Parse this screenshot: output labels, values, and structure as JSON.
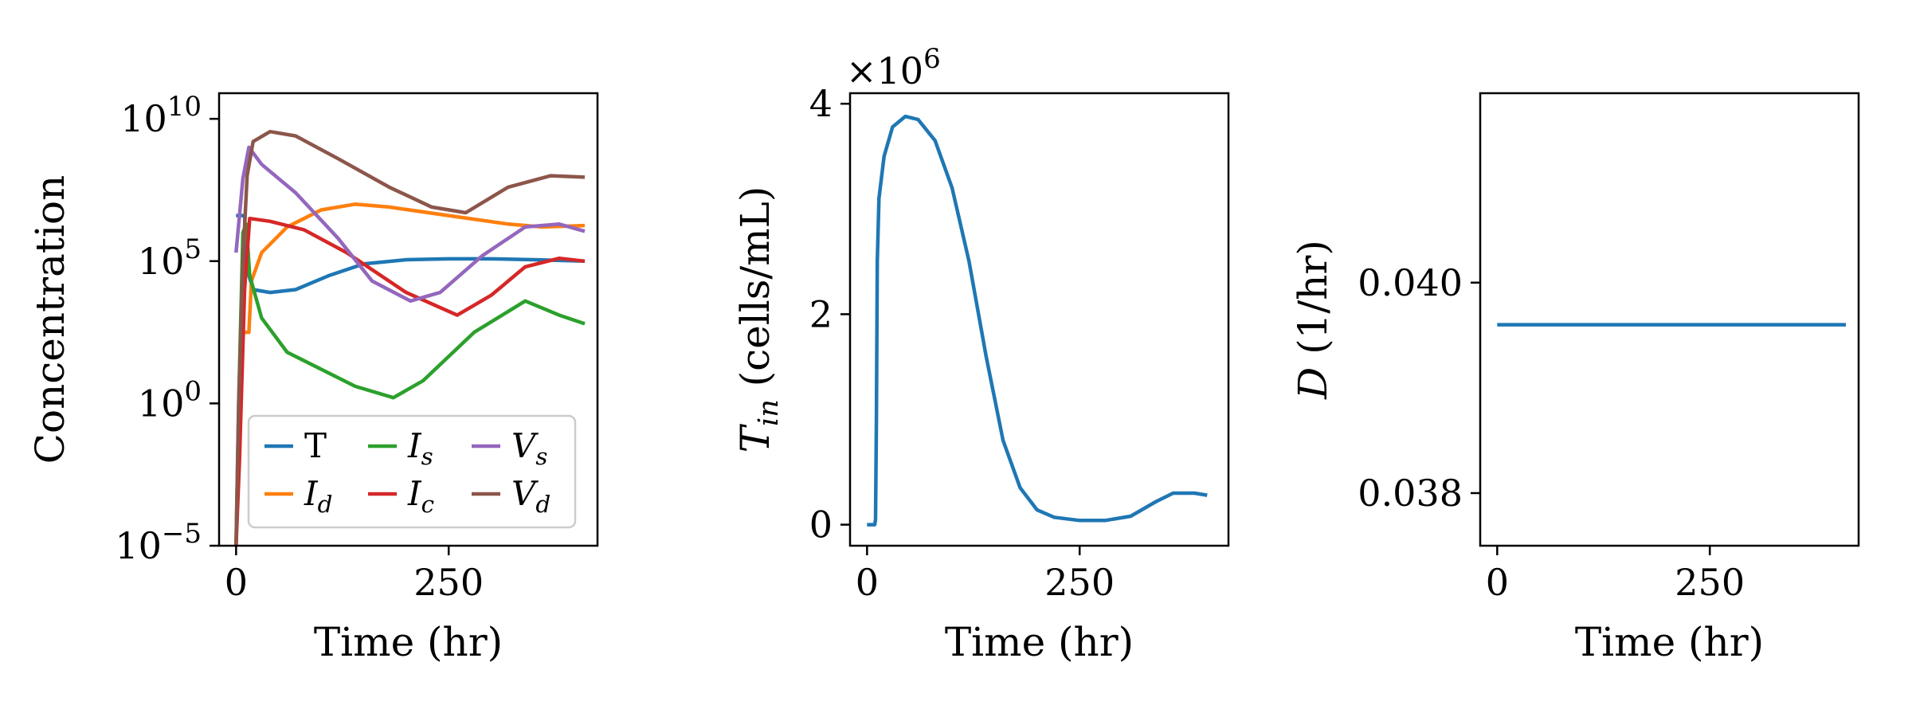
{
  "chart_data": [
    {
      "type": "line",
      "xlabel": "Time (hr)",
      "ylabel": "Concentration",
      "y_scale": "log",
      "xlim": [
        -20,
        425
      ],
      "ylim_log10": [
        -5,
        10.9
      ],
      "xticks": [
        0,
        250
      ],
      "yticks": [
        {
          "exp": 10,
          "label": "10",
          "sup": "10"
        },
        {
          "exp": 5,
          "label": "10",
          "sup": "5"
        },
        {
          "exp": 0,
          "label": "10",
          "sup": "0"
        },
        {
          "exp": -5,
          "label": "10",
          "sup": "−5"
        }
      ],
      "legend": {
        "placement": "lower-right",
        "columns": 3
      },
      "series": [
        {
          "name": "T",
          "color": "#1f77b4",
          "points": [
            [
              0,
              6.6
            ],
            [
              10,
              6.6
            ],
            [
              12,
              4.8
            ],
            [
              20,
              4.0
            ],
            [
              40,
              3.9
            ],
            [
              70,
              4.0
            ],
            [
              110,
              4.5
            ],
            [
              150,
              4.9
            ],
            [
              200,
              5.05
            ],
            [
              250,
              5.08
            ],
            [
              300,
              5.08
            ],
            [
              350,
              5.05
            ],
            [
              410,
              5.0
            ]
          ]
        },
        {
          "name": "I_d",
          "color": "#ff7f0e",
          "points": [
            [
              0,
              -5
            ],
            [
              4,
              -1
            ],
            [
              8,
              2.5
            ],
            [
              15,
              2.5
            ],
            [
              18,
              4.3
            ],
            [
              30,
              5.3
            ],
            [
              60,
              6.2
            ],
            [
              100,
              6.8
            ],
            [
              140,
              7.0
            ],
            [
              180,
              6.9
            ],
            [
              250,
              6.6
            ],
            [
              320,
              6.3
            ],
            [
              360,
              6.2
            ],
            [
              410,
              6.25
            ]
          ]
        },
        {
          "name": "I_s",
          "color": "#2ca02c",
          "points": [
            [
              0,
              -5
            ],
            [
              3,
              0
            ],
            [
              8,
              6
            ],
            [
              12,
              6.3
            ],
            [
              16,
              4.5
            ],
            [
              30,
              3.0
            ],
            [
              60,
              1.8
            ],
            [
              100,
              1.2
            ],
            [
              140,
              0.6
            ],
            [
              185,
              0.2
            ],
            [
              220,
              0.8
            ],
            [
              280,
              2.5
            ],
            [
              340,
              3.6
            ],
            [
              380,
              3.1
            ],
            [
              410,
              2.8
            ]
          ]
        },
        {
          "name": "I_c",
          "color": "#d62728",
          "points": [
            [
              0,
              -5
            ],
            [
              4,
              -2
            ],
            [
              10,
              4
            ],
            [
              16,
              6.5
            ],
            [
              40,
              6.4
            ],
            [
              80,
              6.1
            ],
            [
              130,
              5.3
            ],
            [
              200,
              3.9
            ],
            [
              260,
              3.1
            ],
            [
              300,
              3.8
            ],
            [
              340,
              4.8
            ],
            [
              380,
              5.1
            ],
            [
              410,
              5.0
            ]
          ]
        },
        {
          "name": "V_s",
          "color": "#9467bd",
          "points": [
            [
              0,
              5.3
            ],
            [
              8,
              7.9
            ],
            [
              15,
              9.0
            ],
            [
              30,
              8.4
            ],
            [
              70,
              7.4
            ],
            [
              120,
              5.8
            ],
            [
              160,
              4.3
            ],
            [
              205,
              3.6
            ],
            [
              240,
              3.9
            ],
            [
              290,
              5.2
            ],
            [
              340,
              6.2
            ],
            [
              380,
              6.3
            ],
            [
              410,
              6.05
            ]
          ]
        },
        {
          "name": "V_d",
          "color": "#8c564b",
          "points": [
            [
              0,
              -5
            ],
            [
              3,
              0
            ],
            [
              8,
              5
            ],
            [
              13,
              8
            ],
            [
              20,
              9.2
            ],
            [
              40,
              9.55
            ],
            [
              70,
              9.4
            ],
            [
              120,
              8.6
            ],
            [
              180,
              7.6
            ],
            [
              230,
              6.9
            ],
            [
              270,
              6.7
            ],
            [
              320,
              7.6
            ],
            [
              370,
              8.0
            ],
            [
              410,
              7.95
            ]
          ]
        }
      ]
    },
    {
      "type": "line",
      "xlabel": "Time (hr)",
      "ylabel": "T_in (cells/mL)",
      "offset_label": "×10^6",
      "xlim": [
        -20,
        425
      ],
      "ylim": [
        -0.2,
        4.1
      ],
      "xticks": [
        0,
        250
      ],
      "yticks": [
        0,
        2,
        4
      ],
      "series": [
        {
          "name": "T_in",
          "color": "#1f77b4",
          "points": [
            [
              0,
              0
            ],
            [
              9,
              0
            ],
            [
              10,
              0.05
            ],
            [
              11,
              1.0
            ],
            [
              12,
              2.5
            ],
            [
              14,
              3.1
            ],
            [
              20,
              3.5
            ],
            [
              30,
              3.78
            ],
            [
              45,
              3.88
            ],
            [
              60,
              3.85
            ],
            [
              80,
              3.65
            ],
            [
              100,
              3.2
            ],
            [
              120,
              2.5
            ],
            [
              140,
              1.6
            ],
            [
              160,
              0.8
            ],
            [
              180,
              0.35
            ],
            [
              200,
              0.14
            ],
            [
              220,
              0.07
            ],
            [
              250,
              0.04
            ],
            [
              280,
              0.04
            ],
            [
              310,
              0.08
            ],
            [
              340,
              0.22
            ],
            [
              360,
              0.3
            ],
            [
              385,
              0.3
            ],
            [
              400,
              0.28
            ]
          ]
        }
      ]
    },
    {
      "type": "line",
      "xlabel": "Time (hr)",
      "ylabel": "D (1/hr)",
      "xlim": [
        -20,
        425
      ],
      "ylim": [
        0.0375,
        0.0418
      ],
      "xticks": [
        0,
        250
      ],
      "yticks": [
        {
          "v": 0.038,
          "label": "0.038"
        },
        {
          "v": 0.04,
          "label": "0.040"
        }
      ],
      "series": [
        {
          "name": "D",
          "color": "#1f77b4",
          "points": [
            [
              0,
              0.0396
            ],
            [
              410,
              0.0396
            ]
          ]
        }
      ]
    }
  ]
}
